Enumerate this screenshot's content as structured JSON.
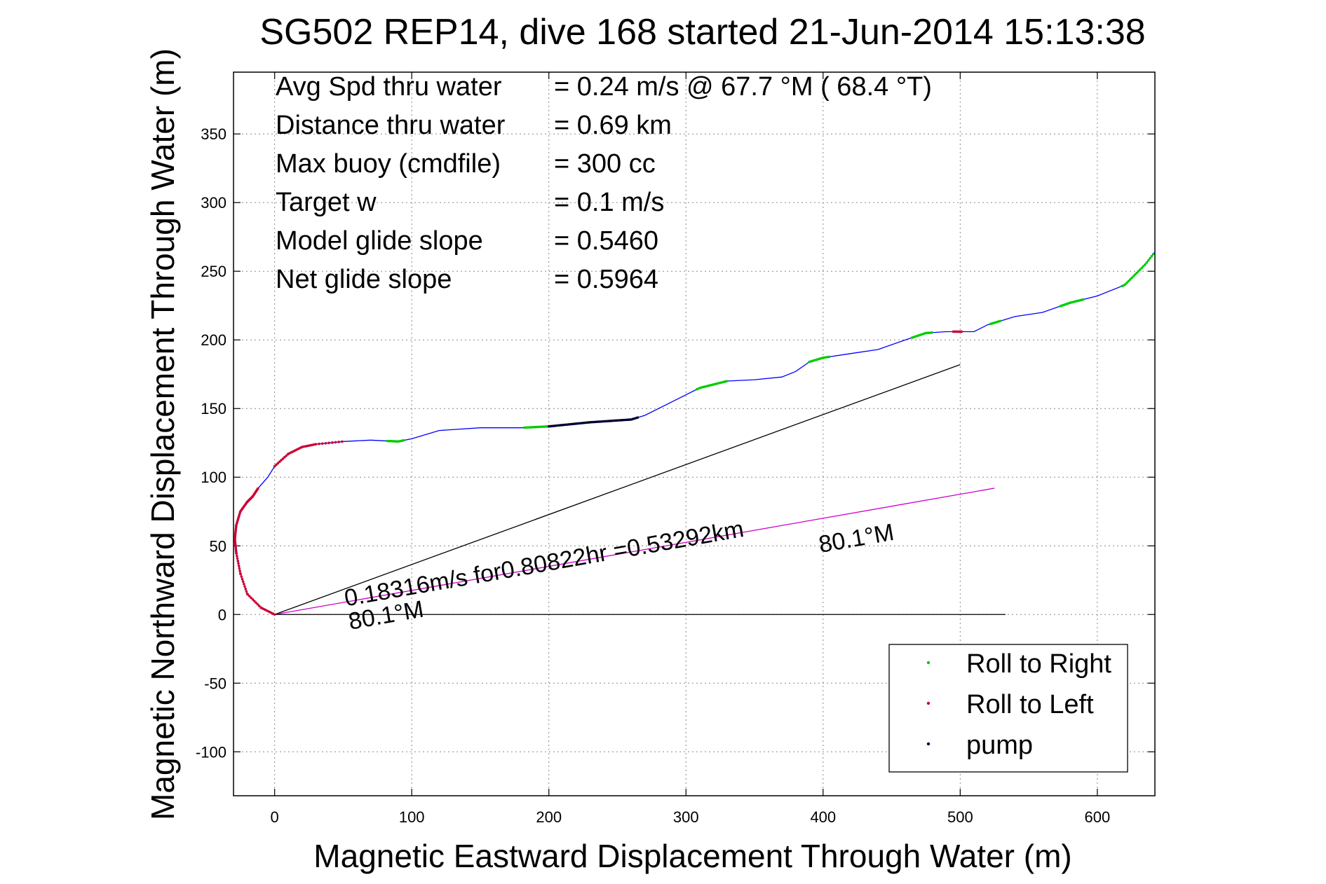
{
  "chart_data": {
    "type": "line",
    "title": "SG502 REP14, dive 168 started 21-Jun-2014 15:13:38",
    "xlabel": "Magnetic Eastward Displacement Through Water (m)",
    "ylabel": "Magnetic Northward Displacement Through Water (m)",
    "xlim": [
      -30,
      642
    ],
    "ylim": [
      -132,
      395
    ],
    "xticks": [
      0,
      100,
      200,
      300,
      400,
      500,
      600
    ],
    "yticks": [
      -100,
      -50,
      0,
      50,
      100,
      150,
      200,
      250,
      300,
      350
    ],
    "grid": true,
    "legend_position": "bottom-right",
    "legend": [
      {
        "label": "Roll to Right",
        "color": "#00cc00"
      },
      {
        "label": "Roll to Left",
        "color": "#cc0033"
      },
      {
        "label": "pump",
        "color": "#000033"
      }
    ],
    "stats": [
      {
        "label": "Avg Spd thru water",
        "value": "=  0.24 m/s @  67.7 °M ( 68.4 °T)"
      },
      {
        "label": "Distance thru water",
        "value": "=  0.69 km"
      },
      {
        "label": "Max buoy (cmdfile)",
        "value": "= 300 cc"
      },
      {
        "label": "Target w",
        "value": "= 0.1 m/s"
      },
      {
        "label": "Model glide slope",
        "value": "= 0.5460"
      },
      {
        "label": "Net glide slope",
        "value": "= 0.5964"
      }
    ],
    "annotations": {
      "current_text": "0.18316m/s for0.80822hr =0.53292km",
      "heading_start": "80.1°M",
      "heading_end": "80.1°M"
    },
    "track": {
      "color": "#0000ff",
      "x": [
        0,
        -10,
        -20,
        -25,
        -28,
        -29,
        -28,
        -25,
        -20,
        -16,
        -12,
        -5,
        0,
        10,
        20,
        30,
        50,
        70,
        90,
        100,
        120,
        150,
        180,
        200,
        230,
        260,
        270,
        290,
        310,
        330,
        350,
        370,
        380,
        390,
        400,
        420,
        440,
        460,
        475,
        490,
        500,
        510,
        520,
        540,
        560,
        580,
        600,
        620,
        635,
        642
      ],
      "y": [
        0,
        5,
        15,
        30,
        45,
        55,
        65,
        75,
        82,
        86,
        92,
        100,
        108,
        117,
        122,
        124,
        126,
        127,
        126,
        128,
        134,
        136,
        136,
        137,
        140,
        142,
        145,
        155,
        165,
        170,
        171,
        173,
        177,
        184,
        187,
        190,
        193,
        200,
        205,
        206,
        206,
        206,
        211,
        217,
        220,
        227,
        232,
        240,
        255,
        264
      ]
    },
    "roll_right_segments": [
      [
        0.5,
        0.5
      ]
    ],
    "segments": {
      "roll_right_x_ranges": [
        [
          82,
          95
        ],
        [
          182,
          200
        ],
        [
          308,
          330
        ],
        [
          390,
          405
        ],
        [
          465,
          480
        ],
        [
          522,
          530
        ],
        [
          573,
          590
        ],
        [
          618,
          642
        ]
      ],
      "roll_left_x_ranges": [
        [
          -30,
          30
        ],
        [
          495,
          502
        ]
      ],
      "pump_x_ranges": [
        [
          200,
          265
        ]
      ]
    },
    "reference_lines": [
      {
        "name": "black reference line",
        "color": "#000000",
        "x": [
          0,
          500
        ],
        "y": [
          0,
          182
        ]
      },
      {
        "name": "current vector",
        "color": "#cc00cc",
        "x": [
          0,
          525
        ],
        "y": [
          0,
          92
        ]
      },
      {
        "name": "horizontal baseline",
        "color": "#000000",
        "x": [
          0,
          533
        ],
        "y": [
          0,
          0
        ]
      }
    ]
  }
}
